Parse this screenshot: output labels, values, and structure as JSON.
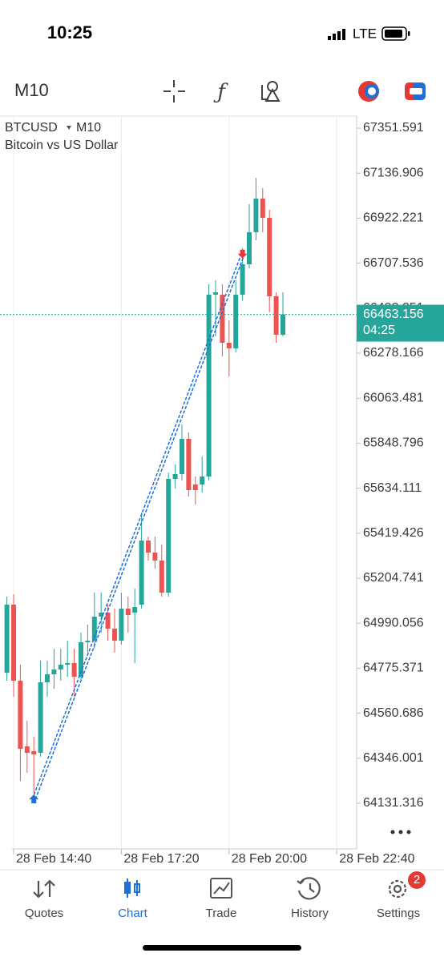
{
  "status_bar": {
    "time": "10:25",
    "network": "LTE"
  },
  "toolbar": {
    "timeframe": "M10"
  },
  "chart_data": {
    "type": "candlestick",
    "symbol": "BTCUSD",
    "timeframe": "M10",
    "description": "Bitcoin vs US Dollar",
    "categories": [
      null,
      "28 Feb 14:40",
      null,
      null,
      null,
      null,
      null,
      null,
      null,
      null,
      null,
      null,
      null,
      null,
      null,
      null,
      null,
      "28 Feb 17:20",
      null,
      null,
      null,
      null,
      null,
      null,
      null,
      null,
      null,
      null,
      null,
      null,
      null,
      null,
      null,
      "28 Feb 20:00",
      null,
      null,
      null,
      null,
      null,
      null,
      null,
      null,
      null,
      null,
      null,
      null,
      null,
      null,
      null,
      "28 Feb 22:40"
    ],
    "open": [
      64754,
      65078.7,
      64715.8,
      64402.6,
      64379.6,
      64372,
      64708.2,
      64746.4,
      64769.3,
      64792.2,
      64799.8,
      64734.9,
      64899.2,
      64906.8,
      65021.4,
      65040.5,
      64964.1,
      64906.8,
      65059.6,
      65040.5,
      65078.7,
      65384.3,
      65327,
      65288.8,
      65136,
      65678.4,
      65701.4,
      65869.4,
      65651.7,
      65651.7,
      65689.9,
      66557,
      66557,
      66327.8,
      66301.1,
      66557,
      66702.2,
      66855,
      67015.4,
      66923.8,
      66549.4,
      66366,
      null,
      null,
      null,
      null,
      null,
      null,
      null,
      null
    ],
    "high": [
      65116.9,
      65128.4,
      64792.2,
      64524.8,
      64448.4,
      64811.3,
      64811.3,
      64868.6,
      64868.6,
      64906.8,
      64868.6,
      64945,
      64983.2,
      65136,
      65136,
      65078.7,
      65059.6,
      65136,
      65116.9,
      65155.1,
      65518,
      65403.4,
      65403.4,
      65365.2,
      65709,
      65747.2,
      65938.2,
      65900,
      65689.9,
      65785.4,
      66606.7,
      66625.8,
      66606.7,
      66434.8,
      66625.8,
      66778.6,
      66988.7,
      67114.8,
      67065.1,
      66962,
      66568.5,
      66568.5,
      null,
      null,
      null,
      null,
      null,
      null,
      null,
      null
    ],
    "low": [
      64715.8,
      64639.4,
      64238.3,
      64276.5,
      64181,
      64352.9,
      64639.4,
      64677.6,
      64715.8,
      64734.9,
      64639.4,
      64715.8,
      64849.5,
      64868.6,
      64945,
      64906.8,
      64849.5,
      64887.7,
      64945,
      64799.8,
      65059.6,
      65288.8,
      65250.6,
      65116.9,
      65116.9,
      65632.6,
      65670.8,
      65594.4,
      65556.2,
      65613.5,
      65670.8,
      66358.4,
      66262.9,
      66167.4,
      66282,
      66530.3,
      66683.1,
      66816.8,
      66855,
      66473,
      66327.8,
      66358.4,
      null,
      null,
      null,
      null,
      null,
      null,
      null,
      null
    ],
    "close": [
      65078.7,
      64715.8,
      64391.1,
      64372,
      64364.4,
      64708.2,
      64746.4,
      64769.3,
      64792.2,
      64799.8,
      64734.9,
      64899.2,
      64906.8,
      65021.4,
      65040.5,
      64964.1,
      64906.8,
      65059.6,
      65029,
      65067.2,
      65384.3,
      65327,
      65288.8,
      65136,
      65678.4,
      65701.4,
      65869.4,
      65625,
      65625,
      65689.9,
      66557,
      66568.5,
      66327.8,
      66301.1,
      66557,
      66702.2,
      66855,
      67015.4,
      66923.8,
      66549.4,
      66366,
      66463.156,
      null,
      null,
      null,
      null,
      null,
      null,
      null,
      null
    ],
    "colors": {
      "up": "#26a69a",
      "down": "#ef5350"
    },
    "ylim": [
      63913.6,
      67408.9
    ],
    "yticks": [
      67351.591,
      67136.906,
      66922.221,
      66707.536,
      66492.851,
      66278.166,
      66063.481,
      65848.796,
      65634.111,
      65419.426,
      65204.741,
      64990.056,
      64775.371,
      64560.686,
      64346.001,
      64131.316
    ],
    "current_price": 66463.156,
    "countdown": "04:25",
    "trade": {
      "open_index": 4,
      "open_price": 64150,
      "close_index": 35,
      "close_price": 66745
    }
  },
  "tab_bar": {
    "tabs": [
      "Quotes",
      "Chart",
      "Trade",
      "History",
      "Settings"
    ],
    "active": 1,
    "badge": "2"
  }
}
